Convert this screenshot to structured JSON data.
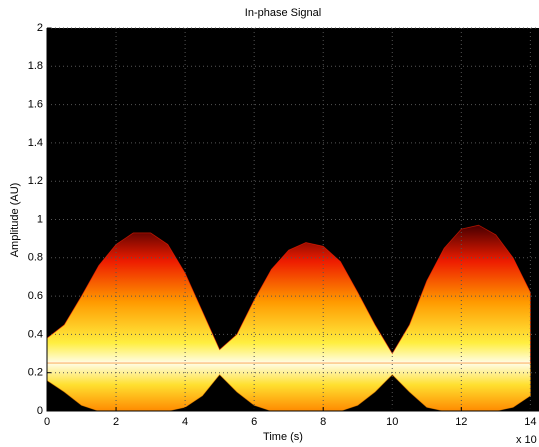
{
  "chart_data": {
    "type": "band",
    "title": "In-phase Signal",
    "xlabel": "Time (s)",
    "ylabel": "Amplitude (AU)",
    "x_multiplier": "x 10",
    "x": [
      0,
      0.5,
      1,
      1.5,
      2,
      2.5,
      3,
      3.5,
      4,
      4.5,
      5,
      5.5,
      6,
      6.5,
      7,
      7.5,
      8,
      8.5,
      9,
      9.5,
      10,
      10.5,
      11,
      11.5,
      12,
      12.5,
      13,
      13.5,
      14
    ],
    "series": [
      {
        "color": "#ff2000",
        "values": [
          0.38,
          0.45,
          0.6,
          0.76,
          0.87,
          0.93,
          0.93,
          0.87,
          0.72,
          0.52,
          0.32,
          0.4,
          0.58,
          0.74,
          0.84,
          0.88,
          0.86,
          0.78,
          0.62,
          0.45,
          0.3,
          0.45,
          0.68,
          0.85,
          0.95,
          0.97,
          0.92,
          0.8,
          0.62
        ]
      },
      {
        "color": "#ff9000",
        "values": [
          0.16,
          0.1,
          0.03,
          0,
          0,
          0,
          0,
          0,
          0.02,
          0.08,
          0.19,
          0.1,
          0.03,
          0,
          0,
          0,
          0,
          0,
          0.03,
          0.1,
          0.19,
          0.1,
          0.02,
          0,
          0,
          0,
          0,
          0.02,
          0.08
        ]
      }
    ],
    "xlim": [
      0,
      14.25
    ],
    "ylim": [
      0,
      2
    ],
    "xticks": [
      0,
      2,
      4,
      6,
      8,
      10,
      12,
      14
    ],
    "yticks": [
      0,
      0.2,
      0.4,
      0.6,
      0.8,
      1,
      1.2,
      1.4,
      1.6,
      1.8,
      2
    ],
    "grid": true
  }
}
